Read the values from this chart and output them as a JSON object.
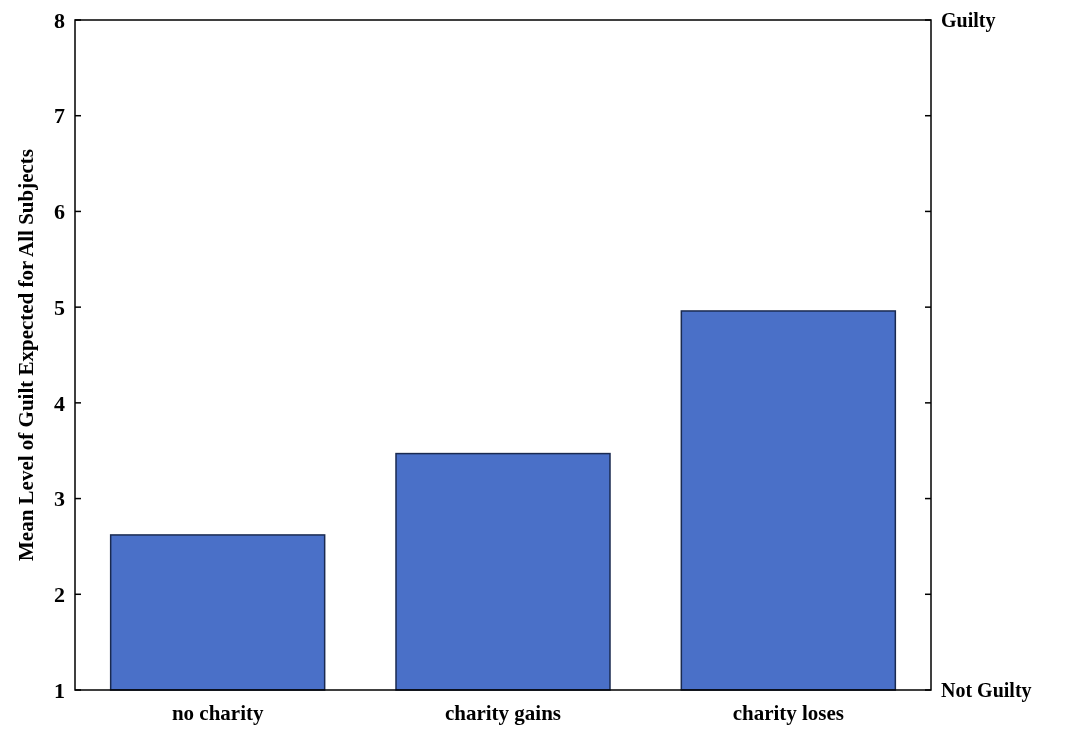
{
  "chart_data": {
    "type": "bar",
    "ylabel": "Mean Level of Guilt Expected for All Subjects",
    "categories": [
      "no charity",
      "charity gains",
      "charity loses"
    ],
    "values": [
      2.62,
      3.47,
      4.96
    ],
    "color": "#4a70c8",
    "ylim": [
      1,
      8
    ],
    "yticks": [
      1,
      2,
      3,
      4,
      5,
      6,
      7,
      8
    ],
    "annotations": [
      "Guilty",
      "Not Guilty"
    ],
    "grid": false
  }
}
